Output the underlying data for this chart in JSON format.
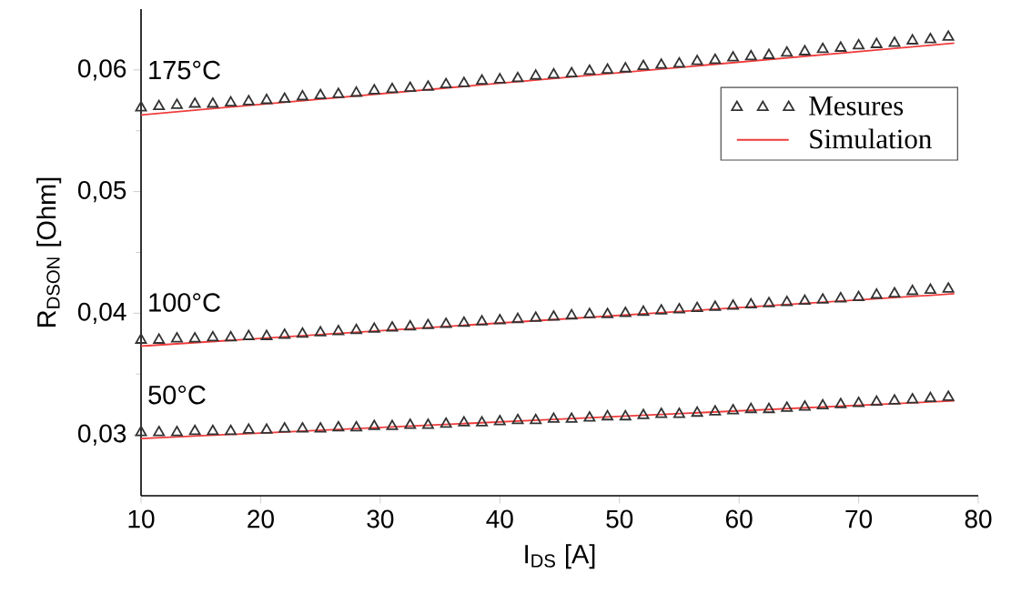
{
  "chart_data": {
    "type": "scatter",
    "xlabel": "I$_{DS}$  [A]",
    "ylabel": "R$_{DSON}$  [Ohm]",
    "xlim": [
      10,
      80
    ],
    "ylim": [
      0.025,
      0.065
    ],
    "xticks": [
      10,
      20,
      30,
      40,
      50,
      60,
      70,
      80
    ],
    "yticks": [
      {
        "value": 0.03,
        "label": "0,03"
      },
      {
        "value": 0.04,
        "label": "0,04"
      },
      {
        "value": 0.05,
        "label": "0,05"
      },
      {
        "value": 0.06,
        "label": "0,06"
      }
    ],
    "legend": "top right",
    "x": [
      10,
      11.5,
      13,
      14.5,
      16,
      17.5,
      19,
      20.5,
      22,
      23.5,
      25,
      26.5,
      28,
      29.5,
      31,
      32.5,
      34,
      35.5,
      37,
      38.5,
      40,
      41.5,
      43,
      44.5,
      46,
      47.5,
      49,
      50.5,
      52,
      53.5,
      55,
      56.5,
      58,
      59.5,
      61,
      62.5,
      64,
      65.5,
      67,
      68.5,
      70,
      71.5,
      73,
      74.5,
      76,
      77.5
    ],
    "series": [
      {
        "name": "Mesures",
        "marker": "triangle",
        "color": "#333333",
        "values": [
          0.0569,
          0.057,
          0.0571,
          0.0572,
          0.0572,
          0.0573,
          0.0574,
          0.0575,
          0.0576,
          0.0578,
          0.0579,
          0.058,
          0.0581,
          0.0583,
          0.0584,
          0.0585,
          0.0586,
          0.0588,
          0.0589,
          0.0591,
          0.0592,
          0.0593,
          0.0595,
          0.0596,
          0.0597,
          0.0599,
          0.06,
          0.0601,
          0.0603,
          0.0604,
          0.0605,
          0.0607,
          0.0608,
          0.061,
          0.0611,
          0.0612,
          0.0614,
          0.0615,
          0.0617,
          0.0618,
          0.062,
          0.0621,
          0.0622,
          0.0624,
          0.0625,
          0.0627
        ]
      },
      {
        "marker": "triangle",
        "color": "#333333",
        "values": [
          0.0378,
          0.0378,
          0.0379,
          0.0379,
          0.038,
          0.038,
          0.0381,
          0.0381,
          0.0382,
          0.0383,
          0.0384,
          0.0385,
          0.0386,
          0.0387,
          0.0388,
          0.0389,
          0.039,
          0.0391,
          0.0392,
          0.0393,
          0.0394,
          0.0395,
          0.0396,
          0.0397,
          0.0398,
          0.0399,
          0.0399,
          0.04,
          0.0401,
          0.0402,
          0.0403,
          0.0404,
          0.0405,
          0.0406,
          0.0407,
          0.0408,
          0.0409,
          0.041,
          0.0411,
          0.0412,
          0.0413,
          0.0415,
          0.0416,
          0.0418,
          0.0419,
          0.042
        ]
      },
      {
        "marker": "triangle",
        "color": "#333333",
        "values": [
          0.0302,
          0.0302,
          0.0302,
          0.0303,
          0.0303,
          0.0303,
          0.0304,
          0.0304,
          0.0305,
          0.0305,
          0.0305,
          0.0306,
          0.0306,
          0.0307,
          0.0307,
          0.0308,
          0.0308,
          0.0309,
          0.031,
          0.031,
          0.0311,
          0.0312,
          0.0312,
          0.0313,
          0.0313,
          0.0314,
          0.0315,
          0.0315,
          0.0316,
          0.0317,
          0.0317,
          0.0318,
          0.0319,
          0.032,
          0.0321,
          0.0321,
          0.0322,
          0.0323,
          0.0324,
          0.0325,
          0.0326,
          0.0327,
          0.0328,
          0.0329,
          0.033,
          0.0331
        ]
      },
      {
        "name": "Simulation",
        "type": "line",
        "marker": "none",
        "color": "#f03c3c",
        "x": [
          10,
          44,
          78
        ],
        "values": [
          0.0563,
          0.05925,
          0.0622
        ]
      },
      {
        "type": "line",
        "marker": "none",
        "color": "#f03c3c",
        "x": [
          10,
          44,
          78
        ],
        "values": [
          0.0373,
          0.03945,
          0.0416
        ]
      },
      {
        "type": "line",
        "marker": "none",
        "color": "#f03c3c",
        "x": [
          10,
          44,
          78
        ],
        "values": [
          0.0297,
          0.03125,
          0.0328
        ]
      }
    ],
    "annotations": [
      "175°C",
      "100°C",
      "50°C"
    ]
  }
}
